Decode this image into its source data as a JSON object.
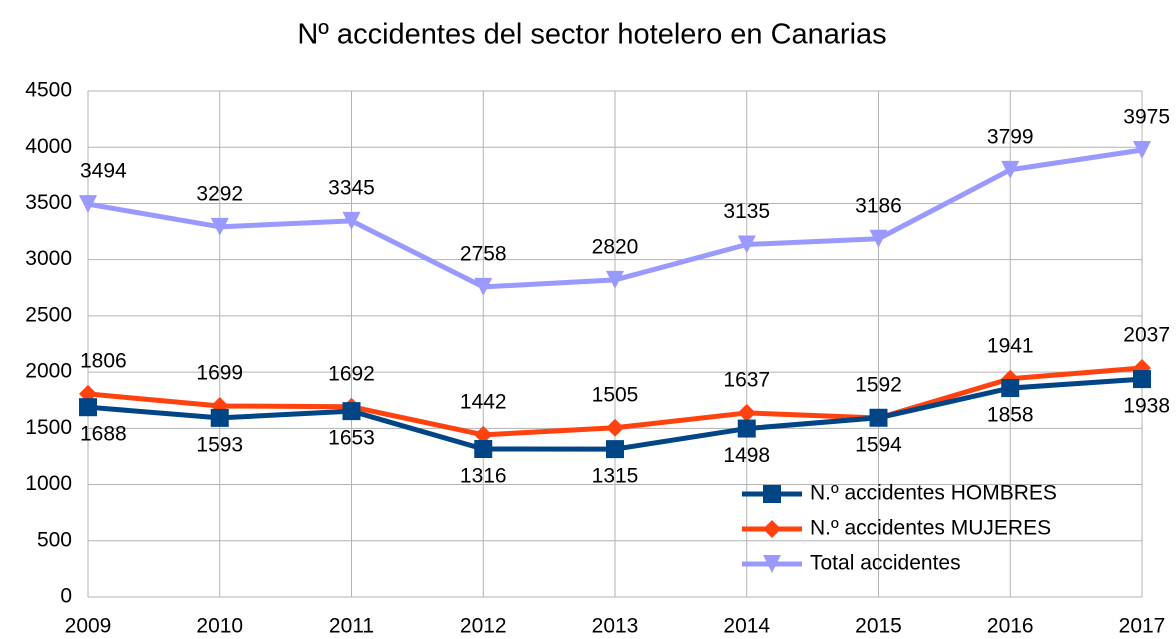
{
  "chart_data": {
    "type": "line",
    "title": "Nº accidentes del sector hotelero en Canarias",
    "categories": [
      "2009",
      "2010",
      "2011",
      "2012",
      "2013",
      "2014",
      "2015",
      "2016",
      "2017"
    ],
    "series": [
      {
        "name": "N.º accidentes HOMBRES",
        "color": "#004586",
        "marker": "square",
        "label_position": "below",
        "values": [
          1688,
          1593,
          1653,
          1316,
          1315,
          1498,
          1594,
          1858,
          1938
        ]
      },
      {
        "name": "N.º accidentes MUJERES",
        "color": "#ff420e",
        "marker": "diamond",
        "label_position": "above",
        "values": [
          1806,
          1699,
          1692,
          1442,
          1505,
          1637,
          1592,
          1941,
          2037
        ]
      },
      {
        "name": "Total accidentes",
        "color": "#9999ff",
        "marker": "triangle-down",
        "label_position": "above",
        "values": [
          3494,
          3292,
          3345,
          2758,
          2820,
          3135,
          3186,
          3799,
          3975
        ]
      }
    ],
    "ylim": [
      0,
      4500
    ],
    "yticks": [
      0,
      500,
      1000,
      1500,
      2000,
      2500,
      3000,
      3500,
      4000,
      4500
    ],
    "grid": true,
    "legend": "lower right"
  }
}
